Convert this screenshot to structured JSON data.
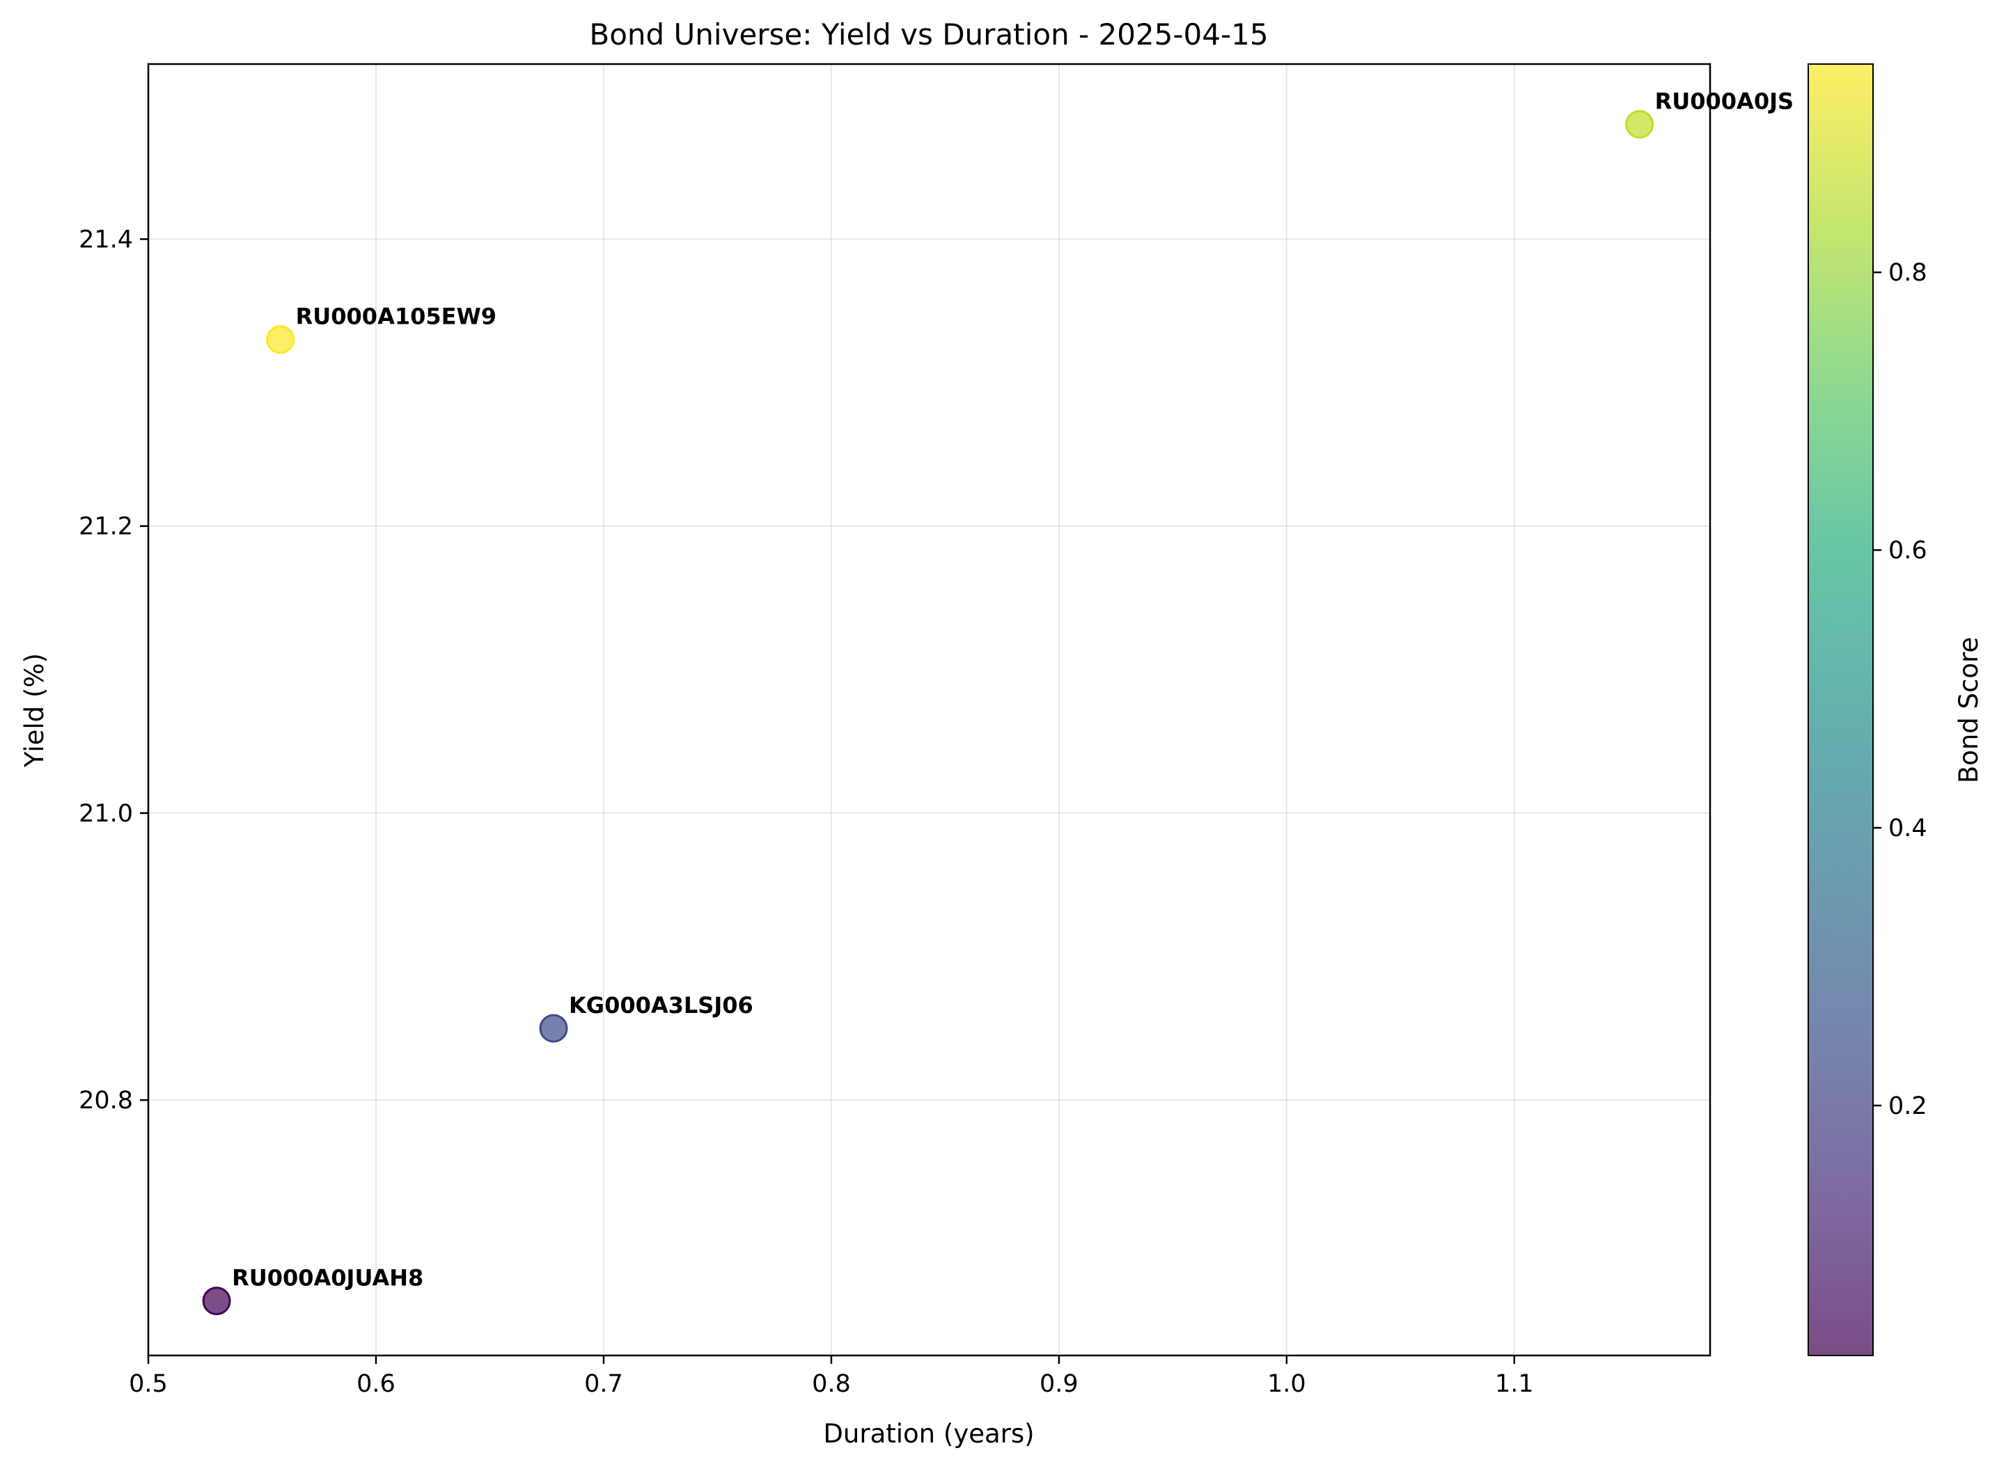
{
  "chart_data": {
    "type": "scatter",
    "title": "Bond Universe: Yield vs Duration - 2025-04-15",
    "xlabel": "Duration (years)",
    "ylabel": "Yield (%)",
    "xlim": [
      0.5,
      1.186
    ],
    "ylim": [
      20.622,
      21.522
    ],
    "x_ticks": [
      0.5,
      0.6,
      0.7,
      0.8,
      0.9,
      1.0,
      1.1
    ],
    "x_tick_labels": [
      "0.5",
      "0.6",
      "0.7",
      "0.8",
      "0.9",
      "1.0",
      "1.1"
    ],
    "y_ticks": [
      20.8,
      21.0,
      21.2,
      21.4
    ],
    "y_tick_labels": [
      "20.8",
      "21.0",
      "21.2",
      "21.4"
    ],
    "grid": true,
    "colormap": "viridis",
    "colorbar": {
      "label": "Bond Score",
      "range": [
        0.02,
        0.95
      ],
      "ticks": [
        0.2,
        0.4,
        0.6,
        0.8
      ],
      "tick_labels": [
        "0.2",
        "0.4",
        "0.6",
        "0.8"
      ]
    },
    "points": [
      {
        "label": "RU000A0JUAH8",
        "x": 0.53,
        "y": 20.66,
        "score": 0.02,
        "color": "#440154"
      },
      {
        "label": "KG000A3LSJ06",
        "x": 0.678,
        "y": 20.85,
        "score": 0.24,
        "color": "#3e4a89"
      },
      {
        "label": "RU000A105EW9",
        "x": 0.558,
        "y": 21.33,
        "score": 0.95,
        "color": "#fde725"
      },
      {
        "label": "RU000A0JS",
        "x": 1.155,
        "y": 21.48,
        "score": 0.85,
        "color": "#bddf26"
      }
    ]
  }
}
